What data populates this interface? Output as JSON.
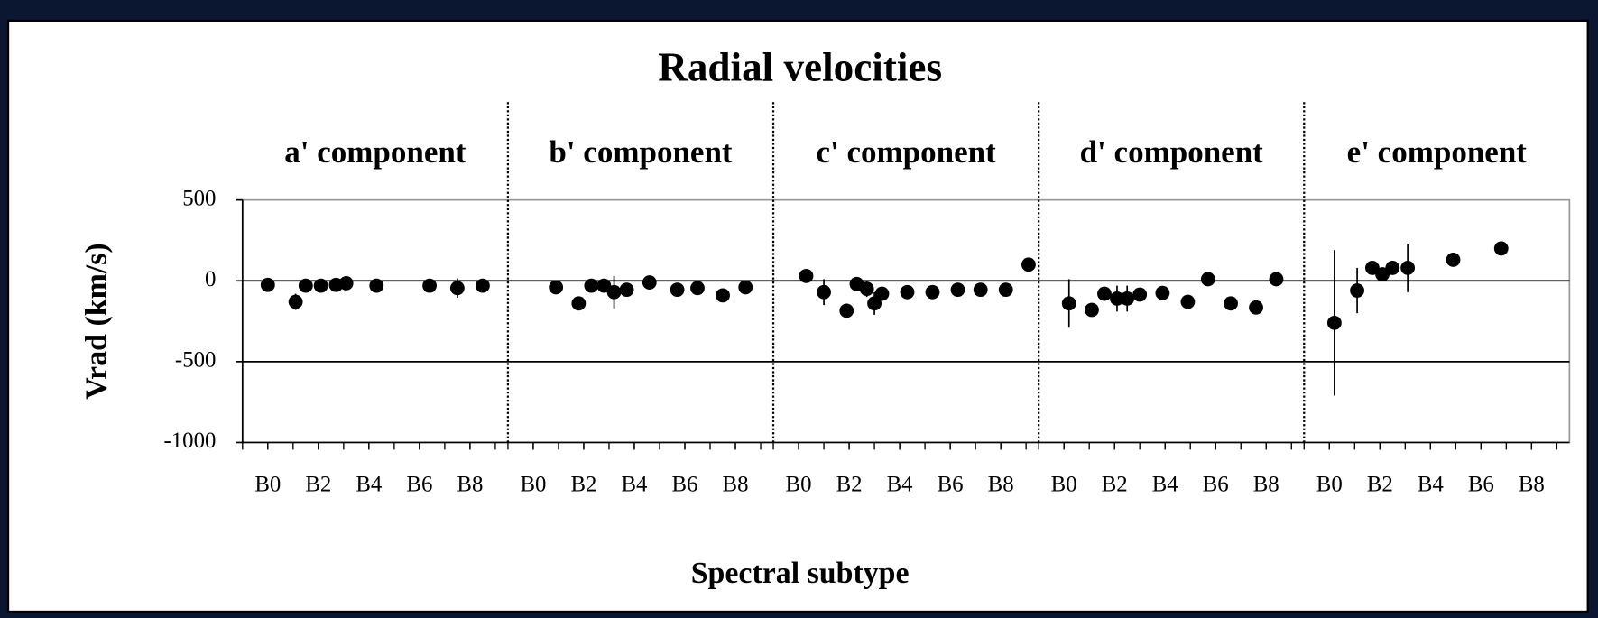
{
  "chart_data": {
    "type": "scatter",
    "title": "Radial velocities",
    "xlabel": "Spectral subtype",
    "ylabel": "Vrad (km/s)",
    "ylim": [
      -1000,
      500
    ],
    "yticks": [
      500,
      0,
      -500,
      -1000
    ],
    "grid": true,
    "color": "#000000",
    "panels": [
      {
        "title": "a' component",
        "xlim": [
          -1,
          9.5
        ],
        "xticks": [
          {
            "value": 0,
            "label": "B0"
          },
          {
            "value": 2,
            "label": "B2"
          },
          {
            "value": 4,
            "label": "B4"
          },
          {
            "value": 6,
            "label": "B6"
          },
          {
            "value": 8,
            "label": "B8"
          }
        ],
        "x": [
          0,
          1.1,
          1.5,
          2.1,
          2.7,
          3.1,
          4.3,
          6.4,
          7.5,
          8.5
        ],
        "values": [
          -25,
          -130,
          -30,
          -30,
          -25,
          -15,
          -30,
          -30,
          -45,
          -30
        ],
        "errors": [
          null,
          50,
          null,
          null,
          null,
          null,
          null,
          null,
          60,
          null
        ]
      },
      {
        "title": "b' component",
        "xlim": [
          -1,
          9.5
        ],
        "xticks": [
          {
            "value": 0,
            "label": "B0"
          },
          {
            "value": 2,
            "label": "B2"
          },
          {
            "value": 4,
            "label": "B4"
          },
          {
            "value": 6,
            "label": "B6"
          },
          {
            "value": 8,
            "label": "B8"
          }
        ],
        "x": [
          0.9,
          1.8,
          2.3,
          2.8,
          3.2,
          3.7,
          4.6,
          5.7,
          6.5,
          7.5,
          8.4
        ],
        "values": [
          -40,
          -140,
          -30,
          -30,
          -70,
          -55,
          -10,
          -55,
          -45,
          -90,
          -40
        ],
        "errors": [
          null,
          null,
          null,
          null,
          100,
          null,
          null,
          null,
          null,
          null,
          null
        ]
      },
      {
        "title": "c' component",
        "xlim": [
          -1,
          9.5
        ],
        "xticks": [
          {
            "value": 0,
            "label": "B0"
          },
          {
            "value": 2,
            "label": "B2"
          },
          {
            "value": 4,
            "label": "B4"
          },
          {
            "value": 6,
            "label": "B6"
          },
          {
            "value": 8,
            "label": "B8"
          }
        ],
        "x": [
          0.3,
          1.0,
          1.9,
          2.3,
          2.7,
          3.0,
          3.3,
          4.3,
          5.3,
          6.3,
          7.2,
          8.2,
          9.1
        ],
        "values": [
          30,
          -70,
          -185,
          -20,
          -50,
          -140,
          -80,
          -70,
          -70,
          -55,
          -55,
          -55,
          100
        ],
        "errors": [
          null,
          80,
          null,
          null,
          50,
          70,
          null,
          null,
          null,
          null,
          null,
          null,
          null
        ]
      },
      {
        "title": "d' component",
        "xlim": [
          -1,
          9.5
        ],
        "xticks": [
          {
            "value": 0,
            "label": "B0"
          },
          {
            "value": 2,
            "label": "B2"
          },
          {
            "value": 4,
            "label": "B4"
          },
          {
            "value": 6,
            "label": "B6"
          },
          {
            "value": 8,
            "label": "B8"
          }
        ],
        "x": [
          0.2,
          1.1,
          1.6,
          2.1,
          2.5,
          3.0,
          3.9,
          4.9,
          5.7,
          6.6,
          7.6,
          8.4
        ],
        "values": [
          -140,
          -180,
          -80,
          -110,
          -110,
          -85,
          -75,
          -130,
          10,
          -140,
          -165,
          10
        ],
        "errors": [
          150,
          null,
          null,
          80,
          80,
          null,
          null,
          null,
          null,
          null,
          null,
          null
        ]
      },
      {
        "title": "e' component",
        "xlim": [
          -1,
          9.5
        ],
        "xticks": [
          {
            "value": 0,
            "label": "B0"
          },
          {
            "value": 2,
            "label": "B2"
          },
          {
            "value": 4,
            "label": "B4"
          },
          {
            "value": 6,
            "label": "B6"
          },
          {
            "value": 8,
            "label": "B8"
          }
        ],
        "x": [
          0.2,
          1.1,
          1.7,
          2.1,
          2.5,
          3.1,
          4.9,
          6.8
        ],
        "values": [
          -260,
          -60,
          80,
          40,
          80,
          80,
          130,
          200
        ],
        "errors": [
          450,
          140,
          null,
          null,
          null,
          150,
          null,
          null
        ]
      }
    ]
  }
}
